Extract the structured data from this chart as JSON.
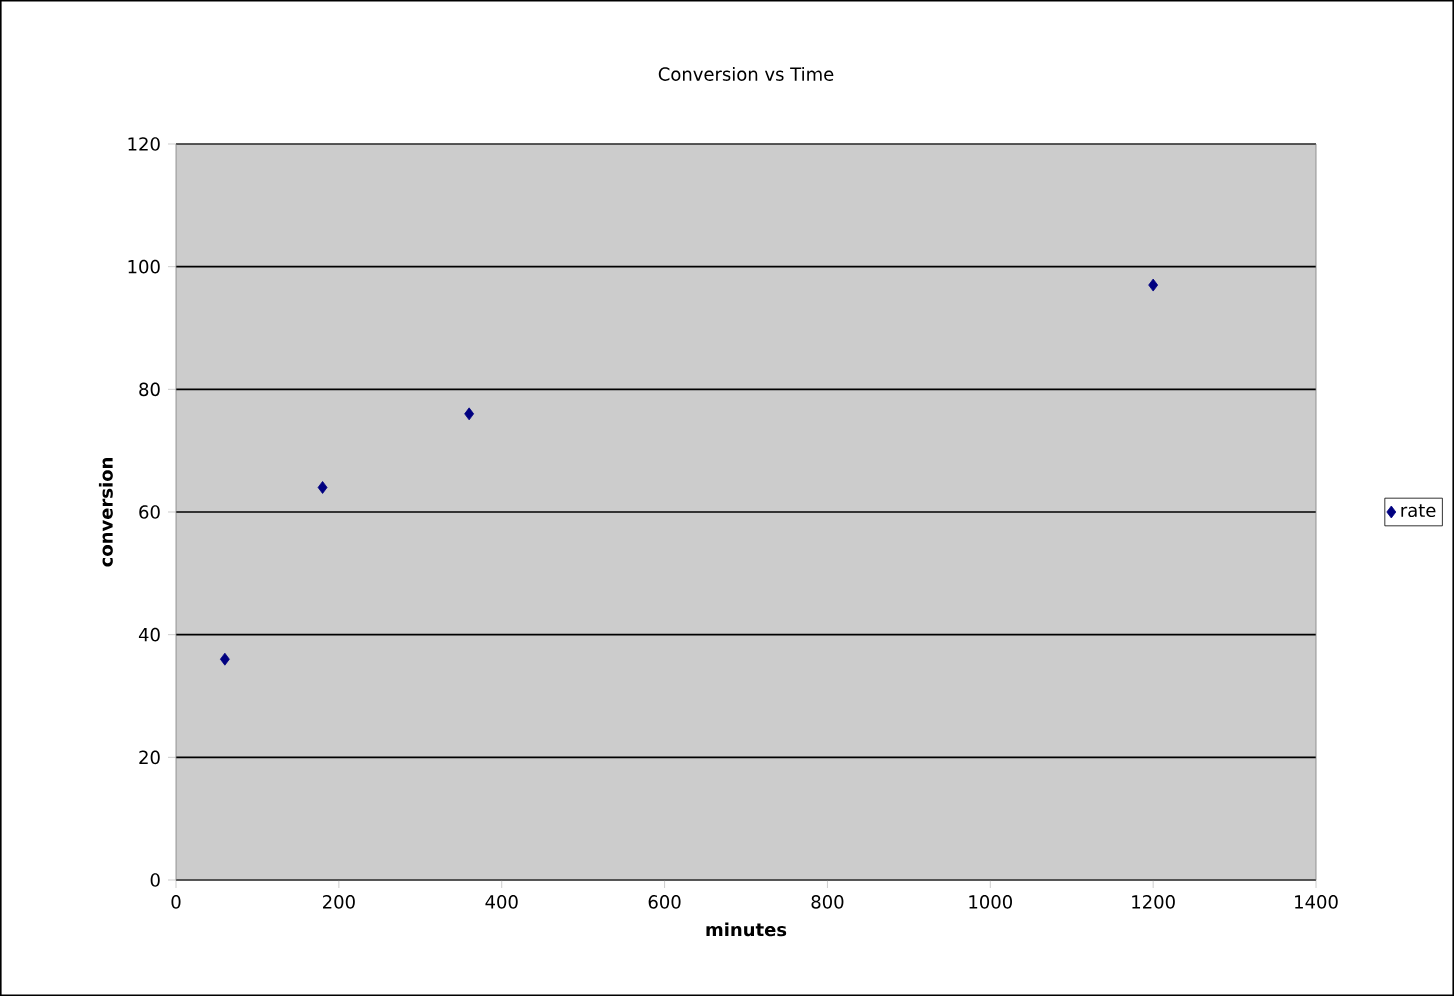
{
  "chart_data": {
    "type": "scatter",
    "title": "Conversion vs Time",
    "xlabel": "minutes",
    "ylabel": "conversion",
    "series": [
      {
        "name": "rate",
        "color": "#000080",
        "x": [
          60,
          180,
          360,
          1200
        ],
        "values": [
          36,
          64,
          76,
          97
        ]
      }
    ],
    "xlim": [
      0,
      1400
    ],
    "xticks": [
      0,
      200,
      400,
      600,
      800,
      1000,
      1200,
      1400
    ],
    "ylim": [
      0,
      120
    ],
    "yticks": [
      0,
      20,
      40,
      60,
      80,
      100,
      120
    ],
    "grid": "y",
    "legend": "right",
    "marker": "diamond"
  }
}
